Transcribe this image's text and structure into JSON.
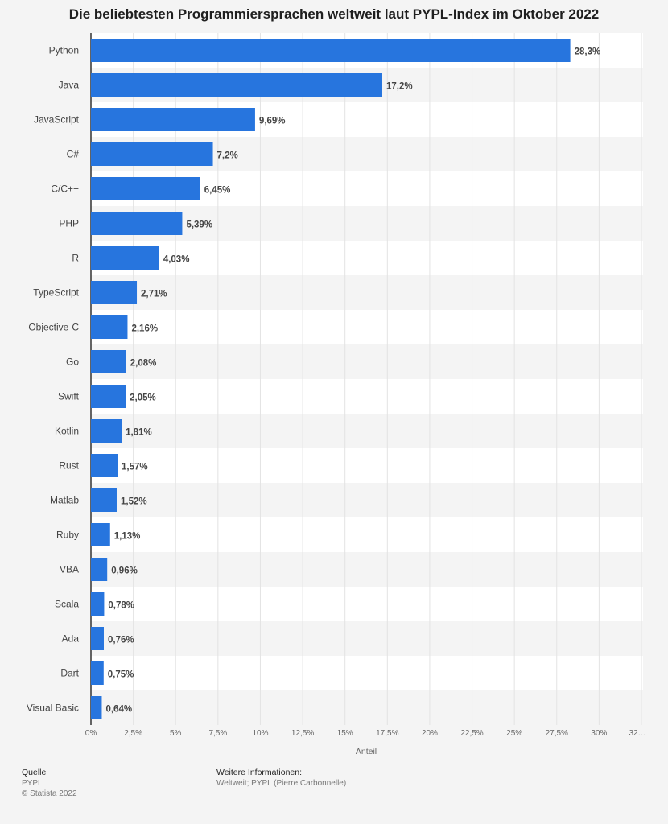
{
  "chart_data": {
    "type": "bar",
    "orientation": "horizontal",
    "title": "Die beliebtesten Programmiersprachen weltweit laut PYPL-Index im Oktober 2022",
    "xlabel": "Anteil",
    "categories": [
      "Python",
      "Java",
      "JavaScript",
      "C#",
      "C/C++",
      "PHP",
      "R",
      "TypeScript",
      "Objective-C",
      "Go",
      "Swift",
      "Kotlin",
      "Rust",
      "Matlab",
      "Ruby",
      "VBA",
      "Scala",
      "Ada",
      "Dart",
      "Visual Basic"
    ],
    "values": [
      28.3,
      17.2,
      9.69,
      7.2,
      6.45,
      5.39,
      4.03,
      2.71,
      2.16,
      2.08,
      2.05,
      1.81,
      1.57,
      1.52,
      1.13,
      0.96,
      0.78,
      0.76,
      0.75,
      0.64
    ],
    "value_labels": [
      "28,3%",
      "17,2%",
      "9,69%",
      "7,2%",
      "6,45%",
      "5,39%",
      "4,03%",
      "2,71%",
      "2,16%",
      "2,08%",
      "2,05%",
      "1,81%",
      "1,57%",
      "1,52%",
      "1,13%",
      "0,96%",
      "0,78%",
      "0,76%",
      "0,75%",
      "0,64%"
    ],
    "x_ticks": [
      0,
      2.5,
      5,
      7.5,
      10,
      12.5,
      15,
      17.5,
      20,
      22.5,
      25,
      27.5,
      30,
      32.5
    ],
    "x_tick_labels": [
      "0%",
      "2,5%",
      "5%",
      "7,5%",
      "10%",
      "12,5%",
      "15%",
      "17,5%",
      "20%",
      "22,5%",
      "25%",
      "27,5%",
      "30%",
      "32…"
    ],
    "xlim": [
      0,
      32.5
    ],
    "bar_color": "#2775de",
    "grid": true
  },
  "footer": {
    "source_heading": "Quelle",
    "source_name": "PYPL",
    "copyright": "© Statista 2022",
    "info_heading": "Weitere Informationen:",
    "info_text": "Weltweit; PYPL (Pierre Carbonnelle)"
  }
}
